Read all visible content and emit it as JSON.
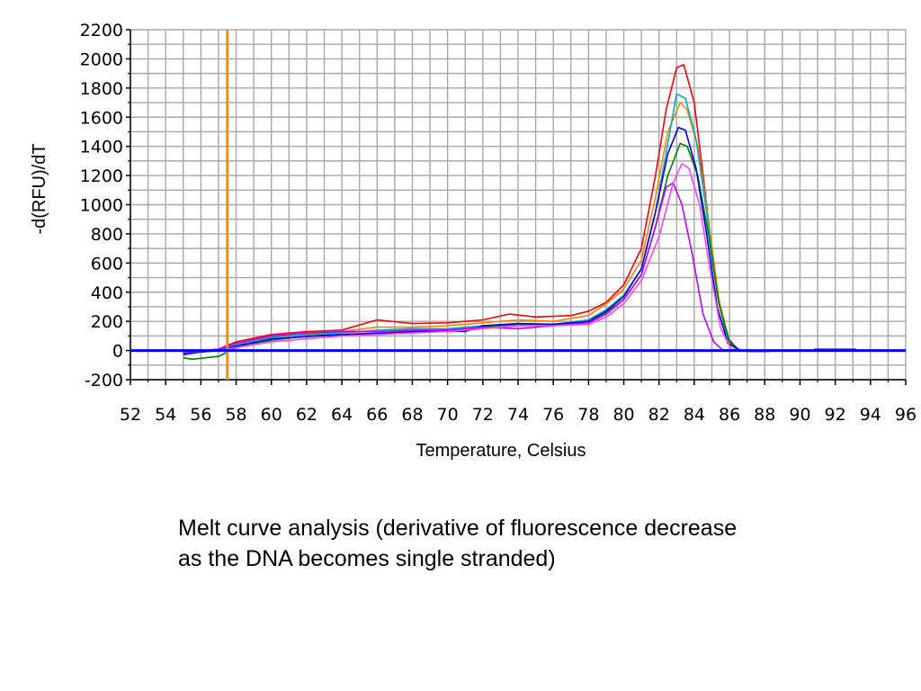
{
  "chart_data": {
    "type": "line",
    "xlabel": "Temperature, Celsius",
    "ylabel": "-d(RFU)/dT",
    "xlim": [
      52,
      96
    ],
    "ylim": [
      -200,
      2200
    ],
    "x_ticks": [
      52,
      54,
      56,
      58,
      60,
      62,
      64,
      66,
      68,
      70,
      72,
      74,
      76,
      78,
      80,
      82,
      84,
      86,
      88,
      90,
      92,
      94,
      96
    ],
    "y_ticks": [
      -200,
      0,
      200,
      400,
      600,
      800,
      1000,
      1200,
      1400,
      1600,
      1800,
      2000,
      2200
    ],
    "grid": true,
    "threshold_temperature": 57.5,
    "baseline_value": 0,
    "series": [
      {
        "color": "#ff0000",
        "points": [
          [
            55,
            -30
          ],
          [
            56,
            -10
          ],
          [
            57,
            10
          ],
          [
            58,
            60
          ],
          [
            60,
            110
          ],
          [
            62,
            130
          ],
          [
            64,
            140
          ],
          [
            66,
            210
          ],
          [
            68,
            185
          ],
          [
            70,
            190
          ],
          [
            72,
            210
          ],
          [
            73.5,
            250
          ],
          [
            75,
            230
          ],
          [
            77,
            240
          ],
          [
            78,
            270
          ],
          [
            79,
            330
          ],
          [
            80,
            450
          ],
          [
            81,
            700
          ],
          [
            81.8,
            1200
          ],
          [
            82.4,
            1650
          ],
          [
            83,
            1940
          ],
          [
            83.4,
            1960
          ],
          [
            84,
            1700
          ],
          [
            84.6,
            1100
          ],
          [
            85.2,
            480
          ],
          [
            85.8,
            100
          ],
          [
            86.5,
            5
          ],
          [
            87,
            0
          ],
          [
            88,
            0
          ]
        ]
      },
      {
        "color": "#ff8000",
        "points": [
          [
            55,
            -20
          ],
          [
            57,
            0
          ],
          [
            58,
            40
          ],
          [
            60,
            90
          ],
          [
            62,
            110
          ],
          [
            64,
            130
          ],
          [
            66,
            160
          ],
          [
            68,
            160
          ],
          [
            70,
            170
          ],
          [
            72,
            190
          ],
          [
            74,
            210
          ],
          [
            76,
            200
          ],
          [
            78,
            240
          ],
          [
            79,
            320
          ],
          [
            80,
            420
          ],
          [
            81,
            620
          ],
          [
            81.8,
            1050
          ],
          [
            82.5,
            1500
          ],
          [
            83.2,
            1700
          ],
          [
            83.6,
            1650
          ],
          [
            84.2,
            1400
          ],
          [
            84.8,
            900
          ],
          [
            85.4,
            350
          ],
          [
            86,
            60
          ],
          [
            86.6,
            0
          ],
          [
            88,
            0
          ]
        ]
      },
      {
        "color": "#00b0c0",
        "points": [
          [
            55,
            -20
          ],
          [
            57,
            0
          ],
          [
            58,
            40
          ],
          [
            60,
            90
          ],
          [
            62,
            110
          ],
          [
            64,
            120
          ],
          [
            66,
            140
          ],
          [
            68,
            150
          ],
          [
            70,
            150
          ],
          [
            72,
            170
          ],
          [
            74,
            180
          ],
          [
            76,
            180
          ],
          [
            78,
            210
          ],
          [
            79,
            280
          ],
          [
            80,
            380
          ],
          [
            81,
            560
          ],
          [
            81.8,
            950
          ],
          [
            82.5,
            1420
          ],
          [
            83,
            1760
          ],
          [
            83.5,
            1730
          ],
          [
            84.1,
            1450
          ],
          [
            84.7,
            950
          ],
          [
            85.3,
            380
          ],
          [
            85.9,
            70
          ],
          [
            86.6,
            0
          ],
          [
            88,
            0
          ]
        ]
      },
      {
        "color": "#008000",
        "points": [
          [
            55,
            -50
          ],
          [
            55.5,
            -60
          ],
          [
            57,
            -40
          ],
          [
            58,
            20
          ],
          [
            60,
            70
          ],
          [
            62,
            100
          ],
          [
            64,
            110
          ],
          [
            66,
            120
          ],
          [
            68,
            130
          ],
          [
            70,
            140
          ],
          [
            72,
            160
          ],
          [
            74,
            180
          ],
          [
            76,
            180
          ],
          [
            78,
            200
          ],
          [
            79,
            260
          ],
          [
            80,
            350
          ],
          [
            81,
            520
          ],
          [
            81.8,
            850
          ],
          [
            82.5,
            1200
          ],
          [
            83.2,
            1420
          ],
          [
            83.6,
            1400
          ],
          [
            84.2,
            1200
          ],
          [
            84.8,
            800
          ],
          [
            85.4,
            320
          ],
          [
            86,
            60
          ],
          [
            86.6,
            0
          ],
          [
            88,
            0
          ]
        ]
      },
      {
        "color": "#0000e0",
        "points": [
          [
            55,
            -20
          ],
          [
            57,
            0
          ],
          [
            58,
            30
          ],
          [
            60,
            80
          ],
          [
            62,
            95
          ],
          [
            64,
            110
          ],
          [
            66,
            115
          ],
          [
            68,
            130
          ],
          [
            70,
            135
          ],
          [
            71,
            130
          ],
          [
            72,
            170
          ],
          [
            74,
            185
          ],
          [
            76,
            180
          ],
          [
            78,
            200
          ],
          [
            79,
            270
          ],
          [
            80,
            370
          ],
          [
            81,
            560
          ],
          [
            81.8,
            950
          ],
          [
            82.5,
            1350
          ],
          [
            83.1,
            1530
          ],
          [
            83.5,
            1510
          ],
          [
            84.1,
            1250
          ],
          [
            84.7,
            800
          ],
          [
            85.3,
            300
          ],
          [
            85.9,
            50
          ],
          [
            86.6,
            0
          ],
          [
            88,
            0
          ]
        ]
      },
      {
        "color": "#c000ff",
        "points": [
          [
            55,
            -10
          ],
          [
            57,
            10
          ],
          [
            58,
            50
          ],
          [
            60,
            100
          ],
          [
            62,
            120
          ],
          [
            64,
            130
          ],
          [
            66,
            130
          ],
          [
            68,
            140
          ],
          [
            70,
            140
          ],
          [
            72,
            160
          ],
          [
            74,
            150
          ],
          [
            76,
            170
          ],
          [
            78,
            190
          ],
          [
            79,
            250
          ],
          [
            80,
            350
          ],
          [
            81,
            520
          ],
          [
            81.8,
            850
          ],
          [
            82.4,
            1120
          ],
          [
            82.8,
            1150
          ],
          [
            83.3,
            1000
          ],
          [
            83.9,
            650
          ],
          [
            84.5,
            250
          ],
          [
            85.1,
            60
          ],
          [
            85.6,
            5
          ],
          [
            86.2,
            0
          ],
          [
            88,
            0
          ]
        ]
      },
      {
        "color": "#ff40ff",
        "points": [
          [
            55,
            -10
          ],
          [
            57,
            0
          ],
          [
            58,
            20
          ],
          [
            60,
            60
          ],
          [
            62,
            80
          ],
          [
            64,
            100
          ],
          [
            66,
            110
          ],
          [
            68,
            120
          ],
          [
            70,
            130
          ],
          [
            72,
            150
          ],
          [
            74,
            170
          ],
          [
            76,
            170
          ],
          [
            78,
            180
          ],
          [
            79,
            230
          ],
          [
            80,
            320
          ],
          [
            81,
            480
          ],
          [
            82,
            780
          ],
          [
            82.8,
            1150
          ],
          [
            83.3,
            1280
          ],
          [
            83.7,
            1250
          ],
          [
            84.3,
            1000
          ],
          [
            84.9,
            550
          ],
          [
            85.5,
            150
          ],
          [
            86.1,
            10
          ],
          [
            86.6,
            0
          ],
          [
            88,
            0
          ]
        ]
      }
    ]
  },
  "caption": {
    "line1": "Melt curve analysis (derivative of fluorescence decrease",
    "line2": "as the DNA becomes single stranded)"
  }
}
